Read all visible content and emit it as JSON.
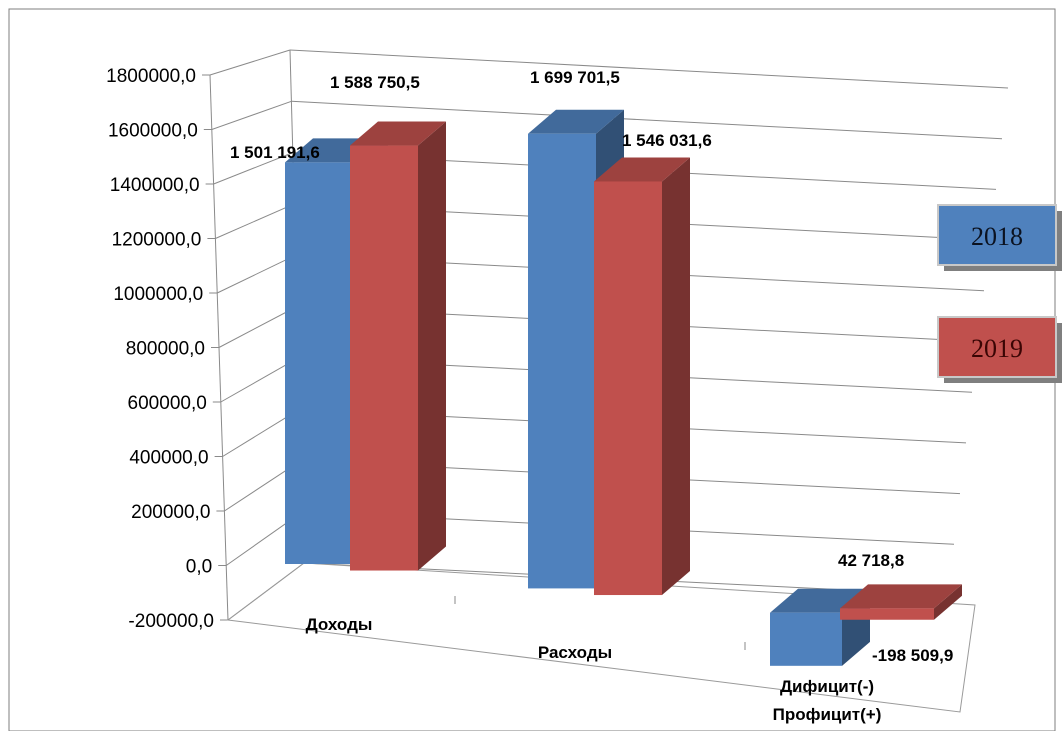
{
  "chart_data": {
    "type": "bar",
    "style": "3d-clustered-column",
    "categories": [
      "Доходы",
      "Расходы",
      "Дифицит(-)\nПрофицит(+)"
    ],
    "series": [
      {
        "name": "2018",
        "values": [
          1501191.6,
          1699701.5,
          -198509.9
        ],
        "labels": [
          "1 501 191,6",
          "1 699 701,5",
          "-198 509,9"
        ],
        "color": "#4f81bd"
      },
      {
        "name": "2019",
        "values": [
          1588750.5,
          1546031.6,
          42718.8
        ],
        "labels": [
          "1 588 750,5",
          "1 546 031,6",
          "42 718,8"
        ],
        "color": "#c0504d"
      }
    ],
    "ylim": [
      -200000,
      1800000
    ],
    "yticks": [
      "1800000,0",
      "1600000,0",
      "1400000,0",
      "1200000,0",
      "1000000,0",
      "800000,0",
      "600000,0",
      "400000,0",
      "200000,0",
      "0,0",
      "-200000,0"
    ],
    "ytick_values": [
      1800000,
      1600000,
      1400000,
      1200000,
      1000000,
      800000,
      600000,
      400000,
      200000,
      0,
      -200000
    ],
    "grid": true,
    "legend": "right",
    "title": "",
    "xlabel": "",
    "ylabel": ""
  }
}
